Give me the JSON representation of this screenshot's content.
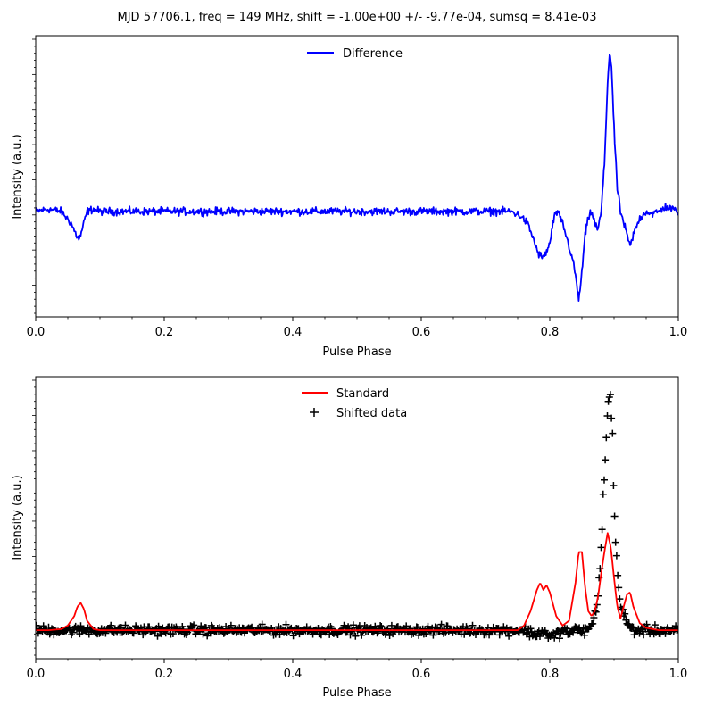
{
  "figure": {
    "title": "MJD 57706.1, freq = 149 MHz, shift = -1.00e+00 +/- -9.77e-04, sumsq = 8.41e-03"
  },
  "chart_data": [
    {
      "type": "line",
      "xlabel": "Pulse Phase",
      "ylabel": "Intensity (a.u.)",
      "xlim": [
        0.0,
        1.0
      ],
      "ylim": [
        -0.45,
        0.75
      ],
      "xticks": [
        "0.0",
        "0.2",
        "0.4",
        "0.6",
        "0.8",
        "1.0"
      ],
      "legend_position": "top-center",
      "grid": false,
      "series": [
        {
          "name": "Difference",
          "color": "#0000ff",
          "style": "line",
          "x": [
            0.0,
            0.02,
            0.04,
            0.055,
            0.063,
            0.068,
            0.072,
            0.08,
            0.09,
            0.1,
            0.15,
            0.2,
            0.25,
            0.3,
            0.35,
            0.4,
            0.45,
            0.5,
            0.55,
            0.6,
            0.65,
            0.7,
            0.74,
            0.755,
            0.765,
            0.775,
            0.782,
            0.79,
            0.8,
            0.805,
            0.81,
            0.815,
            0.82,
            0.825,
            0.835,
            0.84,
            0.845,
            0.85,
            0.855,
            0.86,
            0.865,
            0.87,
            0.875,
            0.88,
            0.885,
            0.89,
            0.893,
            0.896,
            0.9,
            0.905,
            0.91,
            0.915,
            0.92,
            0.925,
            0.93,
            0.94,
            0.95,
            0.96,
            0.97,
            0.98,
            1.0
          ],
          "y": [
            0.0,
            0.01,
            0.0,
            -0.05,
            -0.1,
            -0.12,
            -0.08,
            0.0,
            0.01,
            0.0,
            0.0,
            0.0,
            0.0,
            0.0,
            0.0,
            0.0,
            0.0,
            0.0,
            0.0,
            0.0,
            0.0,
            0.0,
            0.0,
            -0.02,
            -0.05,
            -0.12,
            -0.18,
            -0.2,
            -0.14,
            -0.05,
            0.0,
            -0.02,
            -0.05,
            -0.1,
            -0.2,
            -0.27,
            -0.38,
            -0.26,
            -0.1,
            -0.03,
            0.0,
            -0.05,
            -0.08,
            0.0,
            0.2,
            0.55,
            0.68,
            0.62,
            0.35,
            0.1,
            0.0,
            -0.05,
            -0.1,
            -0.15,
            -0.1,
            -0.03,
            0.0,
            -0.01,
            0.0,
            0.02,
            0.0
          ]
        }
      ]
    },
    {
      "type": "scatter",
      "xlabel": "Pulse Phase",
      "ylabel": "Intensity (a.u.)",
      "xlim": [
        0.0,
        1.0
      ],
      "ylim": [
        -0.12,
        1.07
      ],
      "xticks": [
        "0.0",
        "0.2",
        "0.4",
        "0.6",
        "0.8",
        "1.0"
      ],
      "legend_position": "top-center",
      "grid": false,
      "series": [
        {
          "name": "Standard",
          "color": "#ff0000",
          "style": "line",
          "x": [
            0.0,
            0.02,
            0.04,
            0.05,
            0.06,
            0.065,
            0.07,
            0.075,
            0.08,
            0.09,
            0.1,
            0.15,
            0.2,
            0.3,
            0.4,
            0.5,
            0.6,
            0.7,
            0.75,
            0.76,
            0.77,
            0.78,
            0.785,
            0.79,
            0.795,
            0.8,
            0.81,
            0.82,
            0.83,
            0.84,
            0.845,
            0.85,
            0.855,
            0.86,
            0.865,
            0.87,
            0.875,
            0.88,
            0.885,
            0.89,
            0.895,
            0.9,
            0.905,
            0.91,
            0.915,
            0.92,
            0.925,
            0.93,
            0.94,
            0.95,
            0.97,
            1.0
          ],
          "y": [
            0.0,
            0.0,
            0.005,
            0.02,
            0.06,
            0.1,
            0.115,
            0.09,
            0.04,
            0.005,
            0.0,
            0.0,
            0.0,
            0.0,
            0.0,
            0.0,
            0.0,
            0.0,
            0.0,
            0.02,
            0.08,
            0.17,
            0.2,
            0.17,
            0.19,
            0.16,
            0.06,
            0.02,
            0.04,
            0.2,
            0.33,
            0.33,
            0.18,
            0.08,
            0.06,
            0.08,
            0.14,
            0.24,
            0.33,
            0.41,
            0.35,
            0.22,
            0.1,
            0.05,
            0.1,
            0.15,
            0.16,
            0.1,
            0.03,
            0.01,
            0.0,
            0.0
          ]
        },
        {
          "name": "Shifted data",
          "color": "#000000",
          "style": "markers",
          "x": [
            0.0,
            0.02,
            0.04,
            0.05,
            0.06,
            0.07,
            0.08,
            0.09,
            0.1,
            0.15,
            0.2,
            0.3,
            0.4,
            0.5,
            0.6,
            0.7,
            0.75,
            0.76,
            0.77,
            0.78,
            0.79,
            0.8,
            0.81,
            0.82,
            0.83,
            0.84,
            0.85,
            0.86,
            0.865,
            0.87,
            0.875,
            0.88,
            0.884,
            0.888,
            0.891,
            0.894,
            0.897,
            0.9,
            0.905,
            0.91,
            0.92,
            0.93,
            0.95,
            0.97,
            1.0
          ],
          "y": [
            0.0,
            0.0,
            0.0,
            0.0,
            0.0,
            0.0,
            0.0,
            0.0,
            0.0,
            0.0,
            0.0,
            0.0,
            0.0,
            0.0,
            0.0,
            0.0,
            0.0,
            0.0,
            -0.01,
            -0.02,
            0.0,
            -0.03,
            -0.02,
            0.0,
            -0.01,
            0.0,
            0.0,
            0.0,
            0.02,
            0.06,
            0.15,
            0.35,
            0.6,
            0.82,
            0.97,
            1.0,
            0.85,
            0.55,
            0.25,
            0.1,
            0.03,
            0.0,
            0.0,
            0.0,
            0.0
          ]
        }
      ]
    }
  ]
}
